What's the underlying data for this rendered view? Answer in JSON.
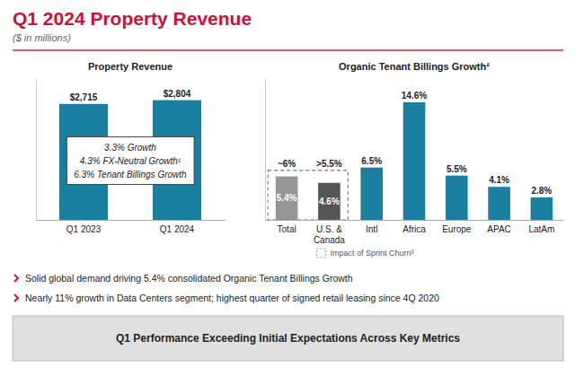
{
  "title": "Q1 2024 Property Revenue",
  "subtitle": "($ in millions)",
  "annotations": [
    "Solid global demand driving 5.4% consolidated Organic Tenant Billings Growth",
    "Nearly 11% growth in Data Centers segment; highest quarter of signed retail leasing since 4Q 2020",
    "Q1 Performance Exceeding Initial Expectations Across Key Metrics"
  ],
  "chart_data": [
    {
      "type": "bar",
      "title": "Property Revenue",
      "categories": [
        "Q1 2023",
        "Q1 2024"
      ],
      "values": [
        2715,
        2804
      ],
      "value_labels": [
        "$2,715",
        "$2,804"
      ],
      "color": "#1a7fa0",
      "ylim": [
        0,
        3300
      ],
      "data_labels": true,
      "tick_labels": "x",
      "grid": false,
      "annotations": [
        "3.3% Growth",
        "4.3% FX-Neutral Growth¹",
        "6.3% Tenant Billings Growth"
      ]
    },
    {
      "type": "bar",
      "title": "Organic Tenant Billings Growth²",
      "categories": [
        "Total",
        "U.S. &\nCanada",
        "Intl",
        "Africa",
        "Europe",
        "APAC",
        "LatAm"
      ],
      "values": [
        5.4,
        4.6,
        6.5,
        14.6,
        5.5,
        4.1,
        2.8
      ],
      "value_labels": [
        "~6%",
        ">5.5%",
        "6.5%",
        "14.6%",
        "5.5%",
        "4.1%",
        "2.8%"
      ],
      "colors": [
        "#969696",
        "#555555",
        "#1a7fa0",
        "#1a7fa0",
        "#1a7fa0",
        "#1a7fa0",
        "#1a7fa0"
      ],
      "ylim": [
        0,
        17.5
      ],
      "data_labels": true,
      "tick_labels": "x",
      "grid": false,
      "annotations": [
        {
          "text": "5.4%",
          "category": "Total"
        },
        {
          "text": "4.6%",
          "category": "U.S. &\nCanada"
        }
      ],
      "churn_box": {
        "label": "Impact of Sprint Churn³",
        "top": 6.15,
        "categories": [
          "Total",
          "U.S. &\nCanada"
        ]
      }
    }
  ]
}
